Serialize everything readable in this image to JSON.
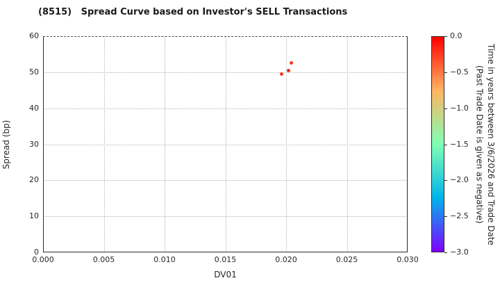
{
  "title": "(8515)   Spread Curve based on Investor's SELL Transactions",
  "chart_data": {
    "type": "scatter",
    "title": "(8515)   Spread Curve based on Investor's SELL Transactions",
    "xlabel": "DV01",
    "ylabel": "Spread (bp)",
    "xlim": [
      0.0,
      0.03
    ],
    "ylim": [
      0,
      60
    ],
    "grid": true,
    "x_ticks": {
      "values": [
        0,
        0.005,
        0.01,
        0.015,
        0.02,
        0.025,
        0.03
      ],
      "labels": [
        "0.000",
        "0.005",
        "0.010",
        "0.015",
        "0.020",
        "0.025",
        "0.030"
      ]
    },
    "y_ticks": {
      "values": [
        0,
        10,
        20,
        30,
        40,
        50,
        60
      ],
      "labels": [
        "0",
        "10",
        "20",
        "30",
        "40",
        "50",
        "60"
      ]
    },
    "points": [
      {
        "x": 0.0204,
        "y": 52.6,
        "color": "#f23a22"
      },
      {
        "x": 0.0202,
        "y": 50.4,
        "color": "#ef2c18"
      },
      {
        "x": 0.0196,
        "y": 49.4,
        "color": "#f03621"
      }
    ],
    "colorbar": {
      "colormap": "rainbow",
      "range_top": 0.0,
      "range_bottom": -3.0,
      "ticks": {
        "values": [
          0,
          -0.5,
          -1.0,
          -1.5,
          -2.0,
          -2.5,
          -3.0
        ],
        "labels": [
          "0.0",
          "−0.5",
          "−1.0",
          "−1.5",
          "−2.0",
          "−2.5",
          "−3.0"
        ]
      },
      "gradient_stops": [
        {
          "offset": 0,
          "color": "#ff0000"
        },
        {
          "offset": 25,
          "color": "#ffb561"
        },
        {
          "offset": 50,
          "color": "#80ffb5"
        },
        {
          "offset": 75,
          "color": "#00b5eb"
        },
        {
          "offset": 100,
          "color": "#7f00ff"
        }
      ],
      "label_line1": "Time in years between 3/6/2026 and Trade Date",
      "label_line2": "(Past Trade Date is given as negative)"
    }
  }
}
